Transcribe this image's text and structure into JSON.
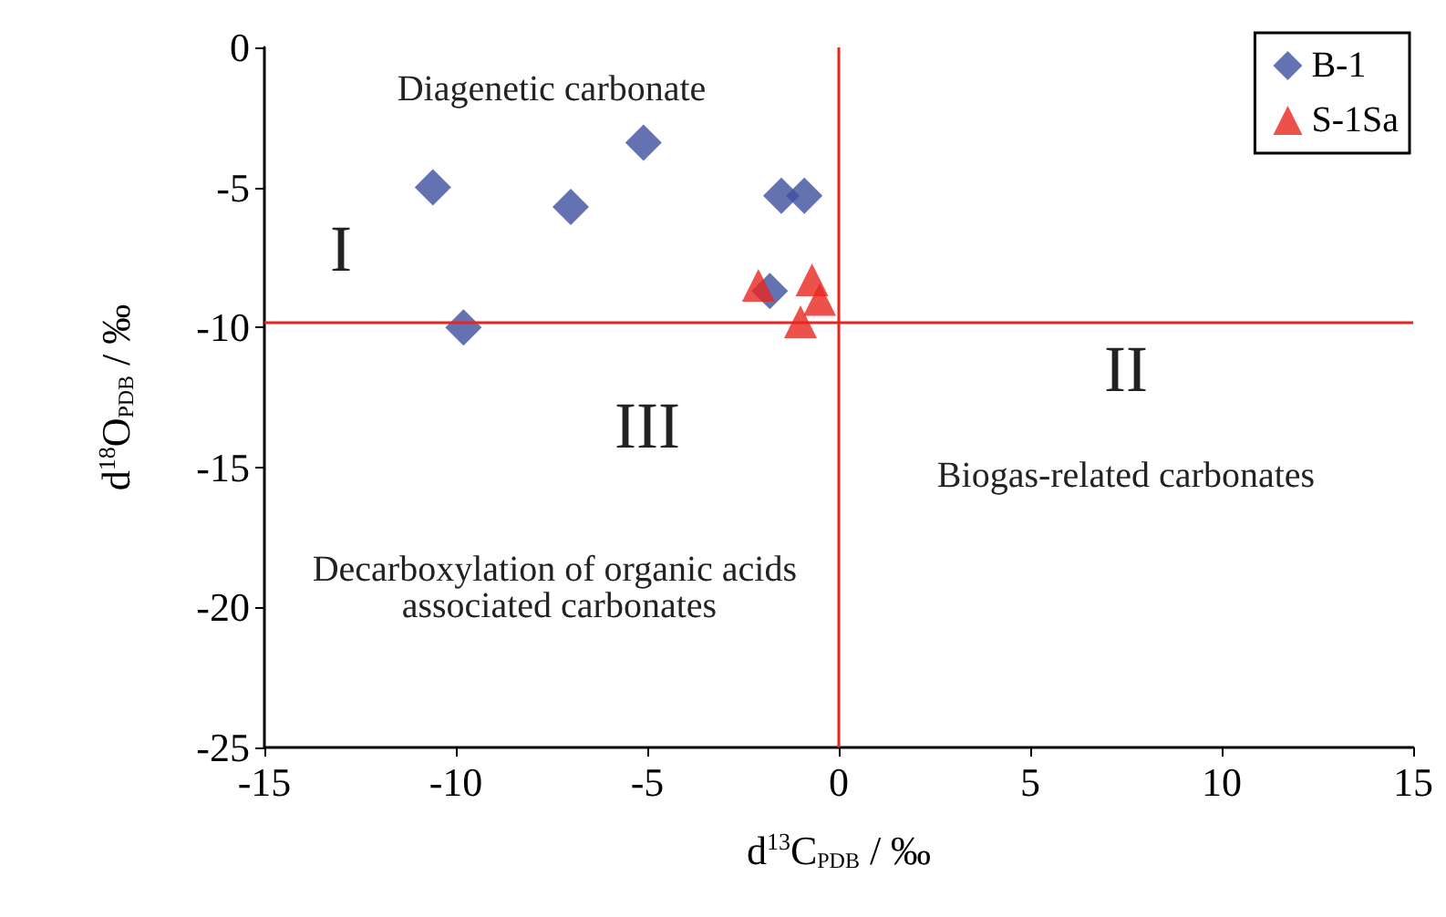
{
  "chart_data": {
    "type": "scatter",
    "xlabel": "d$^{13}$C$_{PDB}$ / ‰",
    "ylabel": "d$^{18}$O$_{PDB}$ / ‰",
    "series": [
      {
        "name": "B-1",
        "color": "#3d4f9f",
        "marker": "diamond",
        "x": [
          -10.6,
          -9.8,
          -7.0,
          -5.1,
          -1.5,
          -0.9,
          -1.8
        ],
        "values": [
          -5.0,
          -10.0,
          -5.7,
          -3.4,
          -5.3,
          -5.3,
          -8.7
        ]
      },
      {
        "name": "S-1Sa",
        "color": "#e8251f",
        "marker": "triangle",
        "x": [
          -2.1,
          -0.7,
          -0.5,
          -1.0
        ],
        "values": [
          -8.5,
          -8.3,
          -9.0,
          -9.8
        ]
      }
    ],
    "xlim": [
      -15,
      15
    ],
    "xticks": [
      -15,
      -10,
      -5,
      0,
      5,
      10,
      15
    ],
    "ylim": [
      -25,
      0
    ],
    "yticks": [
      -25,
      -20,
      -15,
      -10,
      -5,
      0
    ],
    "grid": false,
    "legend": "top right",
    "ref_lines": [
      {
        "axis": "y",
        "value": -9.8,
        "color": "#e8251f"
      },
      {
        "axis": "x",
        "value": 0,
        "color": "#e8251f"
      }
    ],
    "annotations": [
      "Diagenetic carbonate",
      "I",
      "II",
      "III",
      "Biogas-related carbonates",
      "Decarboxylation of organic acids associated carbonates"
    ]
  }
}
